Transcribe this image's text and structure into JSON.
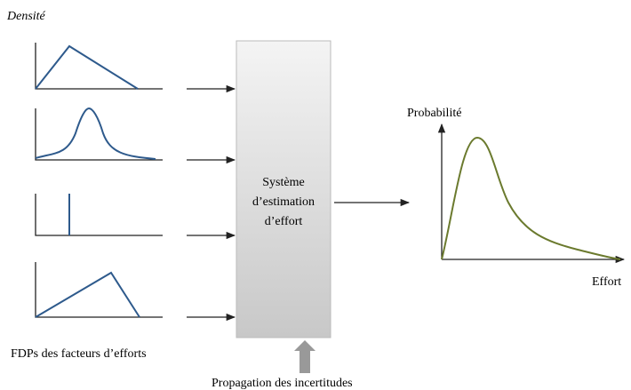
{
  "inputs_label": "Densité",
  "system": {
    "lines": [
      "Système",
      "d’estimation",
      "d’effort"
    ]
  },
  "output": {
    "y_label": "Probabilité",
    "x_label": "Effort"
  },
  "inputs_caption": "FDPs des facteurs d’efforts",
  "propagation_label": "Propagation des incertitudes"
}
